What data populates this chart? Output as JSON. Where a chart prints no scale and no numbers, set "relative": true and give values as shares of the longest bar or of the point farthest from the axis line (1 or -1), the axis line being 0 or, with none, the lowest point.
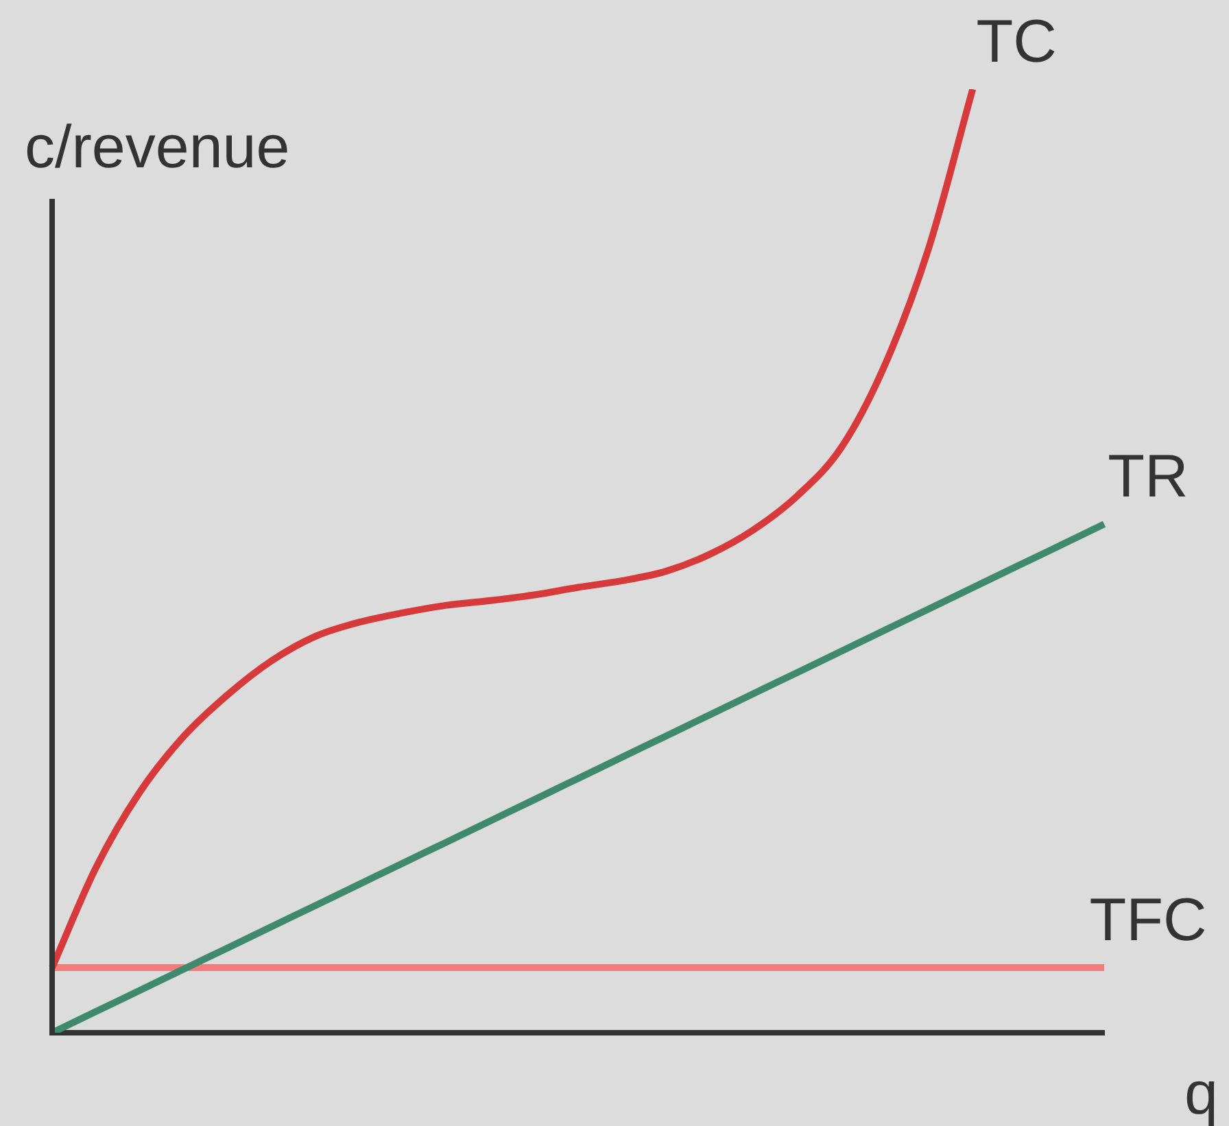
{
  "chart_data": {
    "type": "line",
    "relative": true,
    "xlabel": "q",
    "ylabel": "c/revenue",
    "grid": false,
    "legend": false,
    "marker": "none",
    "line_style": "solid",
    "categories": [
      null,
      null,
      null,
      null,
      null,
      null,
      null,
      null,
      null,
      null,
      null,
      null,
      null,
      null,
      null,
      null,
      null,
      null,
      null,
      null,
      null,
      null,
      null,
      null,
      null
    ],
    "series": [
      {
        "name": "TC",
        "color": "#d63a3a",
        "values": [
          0.069,
          0.175,
          0.255,
          0.314,
          0.358,
          0.394,
          0.42,
          0.435,
          0.445,
          0.453,
          0.458,
          0.464,
          0.472,
          0.479,
          0.489,
          0.507,
          0.533,
          0.569,
          0.62,
          0.708,
          0.832,
          1.0,
          null,
          null,
          null
        ]
      },
      {
        "name": "TR",
        "color": "#3f8a6e",
        "values": [
          0,
          0.0225,
          0.0449,
          0.0674,
          0.0898,
          0.1123,
          0.1347,
          0.1572,
          0.1797,
          0.2021,
          0.2246,
          0.247,
          0.2695,
          0.292,
          0.3144,
          0.3369,
          0.3593,
          0.3818,
          0.4042,
          0.4267,
          0.4492,
          0.4716,
          0.4941,
          0.5165,
          0.539
        ]
      },
      {
        "name": "TFC",
        "color": "#f07c7c",
        "values": [
          0.069,
          0.069,
          0.069,
          0.069,
          0.069,
          0.069,
          0.069,
          0.069,
          0.069,
          0.069,
          0.069,
          0.069,
          0.069,
          0.069,
          0.069,
          0.069,
          0.069,
          0.069,
          0.069,
          0.069,
          0.069,
          0.069,
          0.069,
          0.069,
          0.069
        ]
      }
    ]
  }
}
